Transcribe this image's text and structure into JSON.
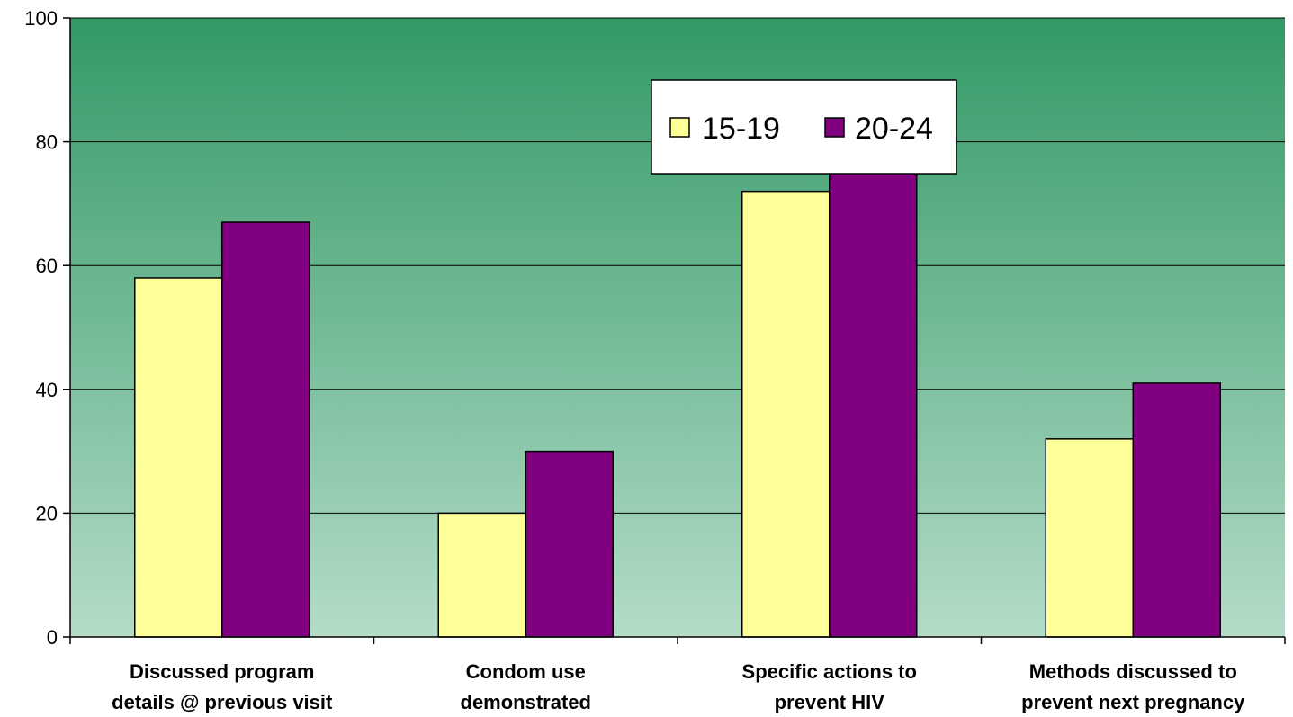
{
  "chart_data": {
    "type": "bar",
    "categories": [
      [
        "Discussed program",
        "details @ previous visit"
      ],
      [
        "Condom use",
        "demonstrated"
      ],
      [
        "Specific actions to",
        "prevent HIV"
      ],
      [
        "Methods discussed to",
        "prevent next pregnancy"
      ]
    ],
    "series": [
      {
        "name": "15-19",
        "values": [
          58,
          20,
          72,
          32
        ],
        "color": "#ffff99"
      },
      {
        "name": "20-24",
        "values": [
          67,
          30,
          79,
          41
        ],
        "color": "#800080"
      }
    ],
    "ylim": [
      0,
      100
    ],
    "yticks": [
      0,
      20,
      40,
      60,
      80,
      100
    ],
    "grid": true,
    "legend": {
      "placement": "top-center",
      "orientation": "horizontal"
    },
    "background_gradient": {
      "top": "#339966",
      "bottom": "#b4dcc8"
    }
  }
}
